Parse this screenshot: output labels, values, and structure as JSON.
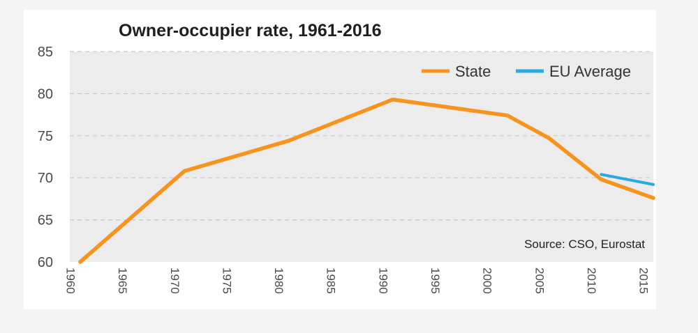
{
  "chart_data": {
    "type": "line",
    "title": "Owner-occupier rate, 1961-2016",
    "xlabel": "",
    "ylabel": "",
    "ylim": [
      60,
      85
    ],
    "xlim": [
      1960,
      2016
    ],
    "y_ticks": [
      "60",
      "65",
      "70",
      "75",
      "80",
      "85"
    ],
    "x_ticks": [
      "1960",
      "1965",
      "1970",
      "1975",
      "1980",
      "1985",
      "1990",
      "1995",
      "2000",
      "2005",
      "2010",
      "2015"
    ],
    "grid": true,
    "legend_position": "top-right",
    "series": [
      {
        "name": "State",
        "color": "#f7941d",
        "points": [
          {
            "x": 1961,
            "y": 60.0
          },
          {
            "x": 1971,
            "y": 70.8
          },
          {
            "x": 1981,
            "y": 74.4
          },
          {
            "x": 1991,
            "y": 79.3
          },
          {
            "x": 2002,
            "y": 77.4
          },
          {
            "x": 2006,
            "y": 74.7
          },
          {
            "x": 2011,
            "y": 69.8
          },
          {
            "x": 2016,
            "y": 67.6
          }
        ]
      },
      {
        "name": "EU Average",
        "color": "#29abe2",
        "points": [
          {
            "x": 2011,
            "y": 70.4
          },
          {
            "x": 2016,
            "y": 69.2
          }
        ]
      }
    ],
    "annotation": "Source: CSO, Eurostat"
  }
}
